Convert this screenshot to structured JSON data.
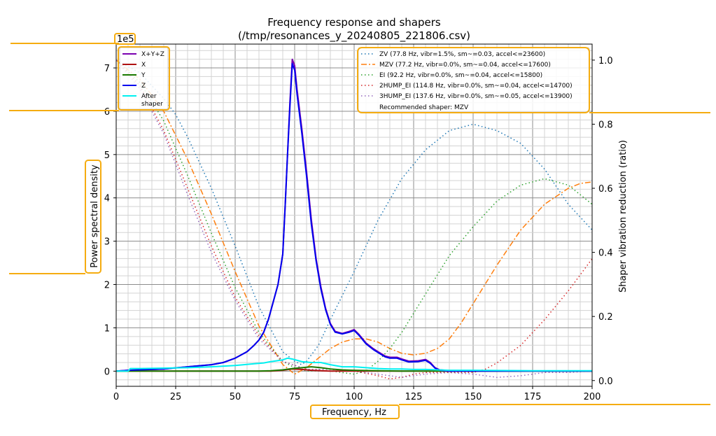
{
  "chart_data": {
    "type": "line",
    "title": "Frequency response and shapers",
    "subtitle": "(/tmp/resonances_y_20240805_221806.csv)",
    "xlabel": "Frequency, Hz",
    "ylabel": "Power spectral density",
    "y2label": "Shaper vibration reduction (ratio)",
    "y_offset_text": "1e5",
    "xlim": [
      0,
      200
    ],
    "ylim": [
      -0.35,
      7.55
    ],
    "y2lim": [
      -0.018,
      1.05
    ],
    "x_ticks": [
      0,
      25,
      50,
      75,
      100,
      125,
      150,
      175,
      200
    ],
    "x_tick_labels": [
      "0",
      "25",
      "50",
      "75",
      "100",
      "125",
      "150",
      "175",
      "200"
    ],
    "y_ticks": [
      0,
      1,
      2,
      3,
      4,
      5,
      6,
      7
    ],
    "y_tick_labels": [
      "0",
      "1",
      "2",
      "3",
      "4",
      "5",
      "6",
      "7"
    ],
    "y2_ticks": [
      0.0,
      0.2,
      0.4,
      0.6,
      0.8,
      1.0
    ],
    "y2_tick_labels": [
      "0.0",
      "0.2",
      "0.4",
      "0.6",
      "0.8",
      "1.0"
    ],
    "grid": "major and minor",
    "legend_left_position": "top-left",
    "legend_right_position": "top-right",
    "psd_series": [
      {
        "name": "X+Y+Z",
        "color": "#7a00b0",
        "points": [
          [
            0,
            0
          ],
          [
            5,
            0.02
          ],
          [
            10,
            0.03
          ],
          [
            20,
            0.05
          ],
          [
            30,
            0.1
          ],
          [
            40,
            0.15
          ],
          [
            45,
            0.2
          ],
          [
            50,
            0.3
          ],
          [
            55,
            0.45
          ],
          [
            58,
            0.6
          ],
          [
            60,
            0.72
          ],
          [
            62,
            0.9
          ],
          [
            64,
            1.2
          ],
          [
            66,
            1.6
          ],
          [
            68,
            2.0
          ],
          [
            70,
            2.7
          ],
          [
            71,
            3.8
          ],
          [
            72,
            5.0
          ],
          [
            73,
            6.2
          ],
          [
            74,
            7.2
          ],
          [
            75,
            7.05
          ],
          [
            76,
            6.5
          ],
          [
            78,
            5.6
          ],
          [
            80,
            4.6
          ],
          [
            82,
            3.5
          ],
          [
            84,
            2.6
          ],
          [
            86,
            1.95
          ],
          [
            88,
            1.45
          ],
          [
            90,
            1.1
          ],
          [
            92,
            0.92
          ],
          [
            95,
            0.87
          ],
          [
            98,
            0.92
          ],
          [
            100,
            0.96
          ],
          [
            102,
            0.85
          ],
          [
            105,
            0.65
          ],
          [
            108,
            0.52
          ],
          [
            110,
            0.45
          ],
          [
            113,
            0.35
          ],
          [
            115,
            0.32
          ],
          [
            118,
            0.32
          ],
          [
            120,
            0.28
          ],
          [
            123,
            0.23
          ],
          [
            127,
            0.24
          ],
          [
            130,
            0.27
          ],
          [
            132,
            0.2
          ],
          [
            134,
            0.08
          ],
          [
            136,
            0.03
          ],
          [
            140,
            0.01
          ],
          [
            150,
            0.01
          ],
          [
            200,
            0.0
          ]
        ]
      },
      {
        "name": "X",
        "color": "#b01010",
        "points": [
          [
            0,
            0
          ],
          [
            40,
            0
          ],
          [
            60,
            0
          ],
          [
            65,
            0.0
          ],
          [
            70,
            0.02
          ],
          [
            74,
            0.05
          ],
          [
            78,
            0.04
          ],
          [
            82,
            0.02
          ],
          [
            86,
            0.01
          ],
          [
            90,
            0.0
          ],
          [
            200,
            0.0
          ]
        ]
      },
      {
        "name": "Y",
        "color": "#1a7a00",
        "points": [
          [
            0,
            0
          ],
          [
            50,
            0
          ],
          [
            60,
            0
          ],
          [
            65,
            0.01
          ],
          [
            70,
            0.03
          ],
          [
            74,
            0.06
          ],
          [
            78,
            0.08
          ],
          [
            82,
            0.1
          ],
          [
            86,
            0.08
          ],
          [
            90,
            0.05
          ],
          [
            95,
            0.03
          ],
          [
            100,
            0.02
          ],
          [
            110,
            0.01
          ],
          [
            120,
            0.0
          ],
          [
            200,
            0.0
          ]
        ]
      },
      {
        "name": "Z",
        "color": "#0000ee",
        "points": [
          [
            0,
            0
          ],
          [
            5,
            0.02
          ],
          [
            10,
            0.03
          ],
          [
            20,
            0.05
          ],
          [
            30,
            0.1
          ],
          [
            40,
            0.15
          ],
          [
            45,
            0.2
          ],
          [
            50,
            0.3
          ],
          [
            55,
            0.45
          ],
          [
            58,
            0.6
          ],
          [
            60,
            0.72
          ],
          [
            62,
            0.9
          ],
          [
            64,
            1.2
          ],
          [
            66,
            1.6
          ],
          [
            68,
            2.0
          ],
          [
            70,
            2.7
          ],
          [
            71,
            3.8
          ],
          [
            72,
            5.0
          ],
          [
            73,
            6.1
          ],
          [
            74,
            7.1
          ],
          [
            75,
            6.95
          ],
          [
            76,
            6.4
          ],
          [
            78,
            5.5
          ],
          [
            80,
            4.5
          ],
          [
            82,
            3.4
          ],
          [
            84,
            2.55
          ],
          [
            86,
            1.9
          ],
          [
            88,
            1.42
          ],
          [
            90,
            1.08
          ],
          [
            92,
            0.9
          ],
          [
            95,
            0.86
          ],
          [
            98,
            0.9
          ],
          [
            100,
            0.94
          ],
          [
            102,
            0.83
          ],
          [
            105,
            0.63
          ],
          [
            108,
            0.5
          ],
          [
            110,
            0.43
          ],
          [
            113,
            0.33
          ],
          [
            115,
            0.3
          ],
          [
            118,
            0.3
          ],
          [
            120,
            0.26
          ],
          [
            123,
            0.21
          ],
          [
            127,
            0.22
          ],
          [
            130,
            0.25
          ],
          [
            132,
            0.18
          ],
          [
            134,
            0.07
          ],
          [
            136,
            0.02
          ],
          [
            140,
            0.0
          ],
          [
            150,
            0.0
          ],
          [
            200,
            0.0
          ]
        ]
      },
      {
        "name": "After\nshaper",
        "color": "#00f0f0",
        "points": [
          [
            0,
            0
          ],
          [
            5,
            0.0
          ],
          [
            6,
            0.06
          ],
          [
            10,
            0.06
          ],
          [
            20,
            0.07
          ],
          [
            30,
            0.08
          ],
          [
            40,
            0.1
          ],
          [
            50,
            0.13
          ],
          [
            58,
            0.17
          ],
          [
            62,
            0.19
          ],
          [
            65,
            0.22
          ],
          [
            70,
            0.26
          ],
          [
            72,
            0.3
          ],
          [
            74,
            0.28
          ],
          [
            78,
            0.22
          ],
          [
            82,
            0.2
          ],
          [
            86,
            0.2
          ],
          [
            90,
            0.15
          ],
          [
            95,
            0.1
          ],
          [
            100,
            0.1
          ],
          [
            105,
            0.08
          ],
          [
            110,
            0.06
          ],
          [
            115,
            0.05
          ],
          [
            120,
            0.05
          ],
          [
            125,
            0.04
          ],
          [
            130,
            0.04
          ],
          [
            135,
            0.03
          ],
          [
            140,
            0.02
          ],
          [
            150,
            0.02
          ],
          [
            175,
            0.01
          ],
          [
            200,
            0.01
          ]
        ]
      }
    ],
    "shaper_series": [
      {
        "name": "ZV (77.8 Hz, vibr=1.5%, sm~=0.03, accel<=23600)",
        "color": "#1f77b4",
        "dash": "1.5,3.5",
        "width": 1.5,
        "points": [
          [
            0,
            1.0
          ],
          [
            10,
            0.96
          ],
          [
            20,
            0.88
          ],
          [
            25,
            0.83
          ],
          [
            30,
            0.76
          ],
          [
            40,
            0.6
          ],
          [
            50,
            0.42
          ],
          [
            60,
            0.23
          ],
          [
            70,
            0.09
          ],
          [
            75,
            0.06
          ],
          [
            77.8,
            0.05
          ],
          [
            80,
            0.06
          ],
          [
            85,
            0.11
          ],
          [
            90,
            0.19
          ],
          [
            100,
            0.34
          ],
          [
            110,
            0.5
          ],
          [
            120,
            0.63
          ],
          [
            130,
            0.72
          ],
          [
            140,
            0.78
          ],
          [
            150,
            0.8
          ],
          [
            160,
            0.78
          ],
          [
            170,
            0.74
          ],
          [
            180,
            0.66
          ],
          [
            190,
            0.55
          ],
          [
            200,
            0.47
          ]
        ]
      },
      {
        "name": "MZV (77.2 Hz, vibr=0.0%, sm~=0.04, accel<=17600)",
        "color": "#ff7f0e",
        "dash": "8,3,2,3",
        "width": 1.5,
        "points": [
          [
            0,
            1.0
          ],
          [
            10,
            0.94
          ],
          [
            20,
            0.84
          ],
          [
            30,
            0.69
          ],
          [
            40,
            0.52
          ],
          [
            50,
            0.34
          ],
          [
            60,
            0.17
          ],
          [
            70,
            0.05
          ],
          [
            75,
            0.02
          ],
          [
            80,
            0.04
          ],
          [
            85,
            0.07
          ],
          [
            90,
            0.1
          ],
          [
            95,
            0.12
          ],
          [
            100,
            0.13
          ],
          [
            105,
            0.13
          ],
          [
            110,
            0.12
          ],
          [
            115,
            0.1
          ],
          [
            120,
            0.085
          ],
          [
            125,
            0.08
          ],
          [
            130,
            0.085
          ],
          [
            135,
            0.1
          ],
          [
            140,
            0.13
          ],
          [
            145,
            0.18
          ],
          [
            150,
            0.24
          ],
          [
            160,
            0.36
          ],
          [
            170,
            0.47
          ],
          [
            180,
            0.55
          ],
          [
            190,
            0.6
          ],
          [
            195,
            0.615
          ],
          [
            200,
            0.62
          ]
        ]
      },
      {
        "name": "EI (92.2 Hz, vibr=0.0%, sm~=0.04, accel<=15800)",
        "color": "#2ca02c",
        "dash": "1.5,3.5",
        "width": 1.5,
        "points": [
          [
            0,
            1.0
          ],
          [
            10,
            0.93
          ],
          [
            20,
            0.81
          ],
          [
            30,
            0.64
          ],
          [
            40,
            0.46
          ],
          [
            50,
            0.29
          ],
          [
            60,
            0.15
          ],
          [
            70,
            0.06
          ],
          [
            75,
            0.04
          ],
          [
            80,
            0.03
          ],
          [
            85,
            0.03
          ],
          [
            90,
            0.03
          ],
          [
            95,
            0.025
          ],
          [
            100,
            0.02
          ],
          [
            105,
            0.03
          ],
          [
            110,
            0.06
          ],
          [
            115,
            0.1
          ],
          [
            120,
            0.15
          ],
          [
            130,
            0.27
          ],
          [
            140,
            0.39
          ],
          [
            150,
            0.48
          ],
          [
            160,
            0.56
          ],
          [
            170,
            0.61
          ],
          [
            180,
            0.63
          ],
          [
            190,
            0.61
          ],
          [
            200,
            0.55
          ]
        ]
      },
      {
        "name": "2HUMP_EI (114.8 Hz, vibr=0.0%, sm~=0.04, accel<=14700)",
        "color": "#d62728",
        "dash": "1.5,3.5",
        "width": 1.5,
        "points": [
          [
            0,
            1.0
          ],
          [
            10,
            0.92
          ],
          [
            20,
            0.78
          ],
          [
            30,
            0.6
          ],
          [
            40,
            0.42
          ],
          [
            50,
            0.26
          ],
          [
            60,
            0.14
          ],
          [
            70,
            0.06
          ],
          [
            80,
            0.035
          ],
          [
            90,
            0.035
          ],
          [
            100,
            0.03
          ],
          [
            110,
            0.015
          ],
          [
            115,
            0.005
          ],
          [
            120,
            0.01
          ],
          [
            125,
            0.02
          ],
          [
            130,
            0.025
          ],
          [
            140,
            0.025
          ],
          [
            150,
            0.025
          ],
          [
            155,
            0.035
          ],
          [
            160,
            0.055
          ],
          [
            170,
            0.11
          ],
          [
            180,
            0.19
          ],
          [
            190,
            0.28
          ],
          [
            200,
            0.38
          ]
        ]
      },
      {
        "name": "3HUMP_EI (137.6 Hz, vibr=0.0%, sm~=0.05, accel<=13900)",
        "color": "#9467bd",
        "dash": "1.5,3.5",
        "width": 1.5,
        "points": [
          [
            0,
            1.0
          ],
          [
            10,
            0.91
          ],
          [
            20,
            0.77
          ],
          [
            30,
            0.58
          ],
          [
            40,
            0.4
          ],
          [
            50,
            0.25
          ],
          [
            60,
            0.13
          ],
          [
            70,
            0.06
          ],
          [
            80,
            0.035
          ],
          [
            90,
            0.035
          ],
          [
            100,
            0.03
          ],
          [
            110,
            0.02
          ],
          [
            120,
            0.01
          ],
          [
            130,
            0.02
          ],
          [
            140,
            0.025
          ],
          [
            150,
            0.02
          ],
          [
            160,
            0.01
          ],
          [
            170,
            0.015
          ],
          [
            180,
            0.025
          ],
          [
            190,
            0.025
          ],
          [
            200,
            0.03
          ]
        ]
      }
    ],
    "recommended_text": "Recommended shaper: MZV"
  }
}
